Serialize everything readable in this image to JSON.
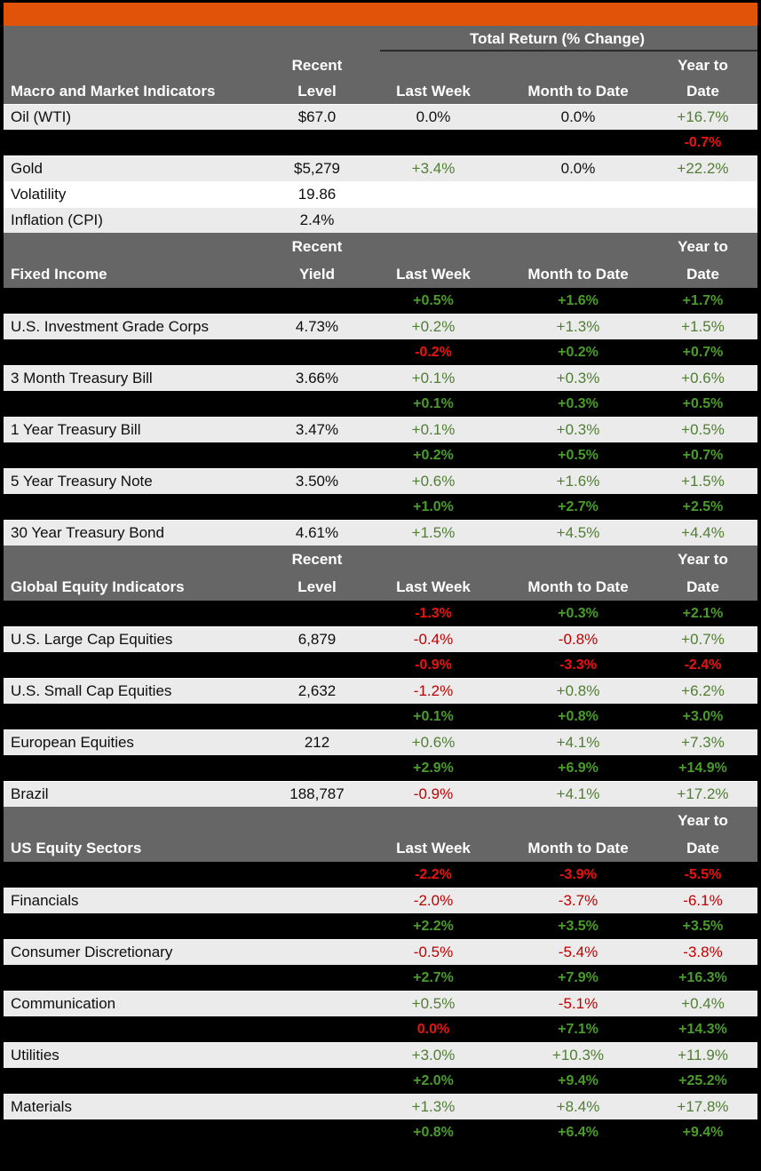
{
  "colors": {
    "banner": "#E2530A",
    "header_bg": "#666667",
    "light_row": "#EBEBEB",
    "white_row": "#FFFFFF",
    "green_light": "#507E32",
    "red_light": "#C00000",
    "green_dark": "#4A9C2B",
    "red_dark": "#EE1111"
  },
  "total_return_header": "Total Return (% Change)",
  "columns": {
    "recent": "Recent",
    "year_to_line1": "Year to",
    "year_to_line2": "Date",
    "last_week": "Last Week",
    "month_to_date": "Month to Date"
  },
  "sections": [
    {
      "title": "Macro and Market Indicators",
      "level_label": "Level",
      "show_total_return": true,
      "rows": [
        {
          "bg": "light",
          "label": "Oil (WTI)",
          "level": "$67.0",
          "lw": "0.0%",
          "lw_color": "neutral",
          "mtd": "0.0%",
          "mtd_color": "neutral",
          "ytd": "+16.7%",
          "ytd_color": "green"
        },
        {
          "bg": "dark",
          "label": "",
          "level": "",
          "lw": "",
          "lw_color": "neutral",
          "mtd": "",
          "mtd_color": "neutral",
          "ytd": "-0.7%",
          "ytd_color": "red"
        },
        {
          "bg": "light",
          "label": "Gold",
          "level": "$5,279",
          "lw": "+3.4%",
          "lw_color": "green",
          "mtd": "0.0%",
          "mtd_color": "neutral",
          "ytd": "+22.2%",
          "ytd_color": "green"
        },
        {
          "bg": "white",
          "label": "Volatility",
          "level": "19.86",
          "lw": "",
          "lw_color": "neutral",
          "mtd": "",
          "mtd_color": "neutral",
          "ytd": "",
          "ytd_color": "neutral"
        },
        {
          "bg": "light",
          "label": "Inflation (CPI)",
          "level": "2.4%",
          "lw": "",
          "lw_color": "neutral",
          "mtd": "",
          "mtd_color": "neutral",
          "ytd": "",
          "ytd_color": "neutral"
        }
      ]
    },
    {
      "title": "Fixed Income",
      "level_label": "Yield",
      "show_total_return": false,
      "rows": [
        {
          "bg": "dark",
          "label": "",
          "level": "",
          "lw": "+0.5%",
          "lw_color": "green",
          "mtd": "+1.6%",
          "mtd_color": "green",
          "ytd": "+1.7%",
          "ytd_color": "green"
        },
        {
          "bg": "light",
          "label": "U.S. Investment Grade Corps",
          "level": "4.73%",
          "lw": "+0.2%",
          "lw_color": "green",
          "mtd": "+1.3%",
          "mtd_color": "green",
          "ytd": "+1.5%",
          "ytd_color": "green"
        },
        {
          "bg": "dark",
          "label": "",
          "level": "",
          "lw": "-0.2%",
          "lw_color": "red",
          "mtd": "+0.2%",
          "mtd_color": "green",
          "ytd": "+0.7%",
          "ytd_color": "green"
        },
        {
          "bg": "light",
          "label": "3 Month Treasury Bill",
          "level": "3.66%",
          "lw": "+0.1%",
          "lw_color": "green",
          "mtd": "+0.3%",
          "mtd_color": "green",
          "ytd": "+0.6%",
          "ytd_color": "green"
        },
        {
          "bg": "dark",
          "label": "",
          "level": "",
          "lw": "+0.1%",
          "lw_color": "green",
          "mtd": "+0.3%",
          "mtd_color": "green",
          "ytd": "+0.5%",
          "ytd_color": "green"
        },
        {
          "bg": "light",
          "label": "1 Year Treasury Bill",
          "level": "3.47%",
          "lw": "+0.1%",
          "lw_color": "green",
          "mtd": "+0.3%",
          "mtd_color": "green",
          "ytd": "+0.5%",
          "ytd_color": "green"
        },
        {
          "bg": "dark",
          "label": "",
          "level": "",
          "lw": "+0.2%",
          "lw_color": "green",
          "mtd": "+0.5%",
          "mtd_color": "green",
          "ytd": "+0.7%",
          "ytd_color": "green"
        },
        {
          "bg": "light",
          "label": "5 Year Treasury Note",
          "level": "3.50%",
          "lw": "+0.6%",
          "lw_color": "green",
          "mtd": "+1.6%",
          "mtd_color": "green",
          "ytd": "+1.5%",
          "ytd_color": "green"
        },
        {
          "bg": "dark",
          "label": "",
          "level": "",
          "lw": "+1.0%",
          "lw_color": "green",
          "mtd": "+2.7%",
          "mtd_color": "green",
          "ytd": "+2.5%",
          "ytd_color": "green"
        },
        {
          "bg": "light",
          "label": "30 Year Treasury Bond",
          "level": "4.61%",
          "lw": "+1.5%",
          "lw_color": "green",
          "mtd": "+4.5%",
          "mtd_color": "green",
          "ytd": "+4.4%",
          "ytd_color": "green"
        }
      ]
    },
    {
      "title": "Global Equity Indicators",
      "level_label": "Level",
      "show_total_return": false,
      "rows": [
        {
          "bg": "dark",
          "label": "",
          "level": "",
          "lw": "-1.3%",
          "lw_color": "red",
          "mtd": "+0.3%",
          "mtd_color": "green",
          "ytd": "+2.1%",
          "ytd_color": "green"
        },
        {
          "bg": "light",
          "label": "U.S. Large Cap Equities",
          "level": "6,879",
          "lw": "-0.4%",
          "lw_color": "red",
          "mtd": "-0.8%",
          "mtd_color": "red",
          "ytd": "+0.7%",
          "ytd_color": "green"
        },
        {
          "bg": "dark",
          "label": "",
          "level": "",
          "lw": "-0.9%",
          "lw_color": "red",
          "mtd": "-3.3%",
          "mtd_color": "red",
          "ytd": "-2.4%",
          "ytd_color": "red"
        },
        {
          "bg": "light",
          "label": "U.S. Small Cap Equities",
          "level": "2,632",
          "lw": "-1.2%",
          "lw_color": "red",
          "mtd": "+0.8%",
          "mtd_color": "green",
          "ytd": "+6.2%",
          "ytd_color": "green"
        },
        {
          "bg": "dark",
          "label": "",
          "level": "",
          "lw": "+0.1%",
          "lw_color": "green",
          "mtd": "+0.8%",
          "mtd_color": "green",
          "ytd": "+3.0%",
          "ytd_color": "green"
        },
        {
          "bg": "light",
          "label": "European Equities",
          "level": "212",
          "lw": "+0.6%",
          "lw_color": "green",
          "mtd": "+4.1%",
          "mtd_color": "green",
          "ytd": "+7.3%",
          "ytd_color": "green"
        },
        {
          "bg": "dark",
          "label": "",
          "level": "",
          "lw": "+2.9%",
          "lw_color": "green",
          "mtd": "+6.9%",
          "mtd_color": "green",
          "ytd": "+14.9%",
          "ytd_color": "green"
        },
        {
          "bg": "light",
          "label": "Brazil",
          "level": "188,787",
          "lw": "-0.9%",
          "lw_color": "red",
          "mtd": "+4.1%",
          "mtd_color": "green",
          "ytd": "+17.2%",
          "ytd_color": "green"
        }
      ]
    },
    {
      "title": "US Equity Sectors",
      "level_label": "",
      "show_total_return": false,
      "rows": [
        {
          "bg": "dark",
          "label": "",
          "level": "",
          "lw": "-2.2%",
          "lw_color": "red",
          "mtd": "-3.9%",
          "mtd_color": "red",
          "ytd": "-5.5%",
          "ytd_color": "red"
        },
        {
          "bg": "light",
          "label": "Financials",
          "level": "",
          "lw": "-2.0%",
          "lw_color": "red",
          "mtd": "-3.7%",
          "mtd_color": "red",
          "ytd": "-6.1%",
          "ytd_color": "red"
        },
        {
          "bg": "dark",
          "label": "",
          "level": "",
          "lw": "+2.2%",
          "lw_color": "green",
          "mtd": "+3.5%",
          "mtd_color": "green",
          "ytd": "+3.5%",
          "ytd_color": "green"
        },
        {
          "bg": "light",
          "label": "Consumer Discretionary",
          "level": "",
          "lw": "-0.5%",
          "lw_color": "red",
          "mtd": "-5.4%",
          "mtd_color": "red",
          "ytd": "-3.8%",
          "ytd_color": "red"
        },
        {
          "bg": "dark",
          "label": "",
          "level": "",
          "lw": "+2.7%",
          "lw_color": "green",
          "mtd": "+7.9%",
          "mtd_color": "green",
          "ytd": "+16.3%",
          "ytd_color": "green"
        },
        {
          "bg": "light",
          "label": "Communication",
          "level": "",
          "lw": "+0.5%",
          "lw_color": "green",
          "mtd": "-5.1%",
          "mtd_color": "red",
          "ytd": "+0.4%",
          "ytd_color": "green"
        },
        {
          "bg": "dark",
          "label": "",
          "level": "",
          "lw": "0.0%",
          "lw_color": "red",
          "mtd": "+7.1%",
          "mtd_color": "green",
          "ytd": "+14.3%",
          "ytd_color": "green"
        },
        {
          "bg": "light",
          "label": "Utilities",
          "level": "",
          "lw": "+3.0%",
          "lw_color": "green",
          "mtd": "+10.3%",
          "mtd_color": "green",
          "ytd": "+11.9%",
          "ytd_color": "green"
        },
        {
          "bg": "dark",
          "label": "",
          "level": "",
          "lw": "+2.0%",
          "lw_color": "green",
          "mtd": "+9.4%",
          "mtd_color": "green",
          "ytd": "+25.2%",
          "ytd_color": "green"
        },
        {
          "bg": "light",
          "label": "Materials",
          "level": "",
          "lw": "+1.3%",
          "lw_color": "green",
          "mtd": "+8.4%",
          "mtd_color": "green",
          "ytd": "+17.8%",
          "ytd_color": "green"
        },
        {
          "bg": "dark",
          "label": "",
          "level": "",
          "lw": "+0.8%",
          "lw_color": "green",
          "mtd": "+6.4%",
          "mtd_color": "green",
          "ytd": "+9.4%",
          "ytd_color": "green"
        }
      ]
    }
  ]
}
